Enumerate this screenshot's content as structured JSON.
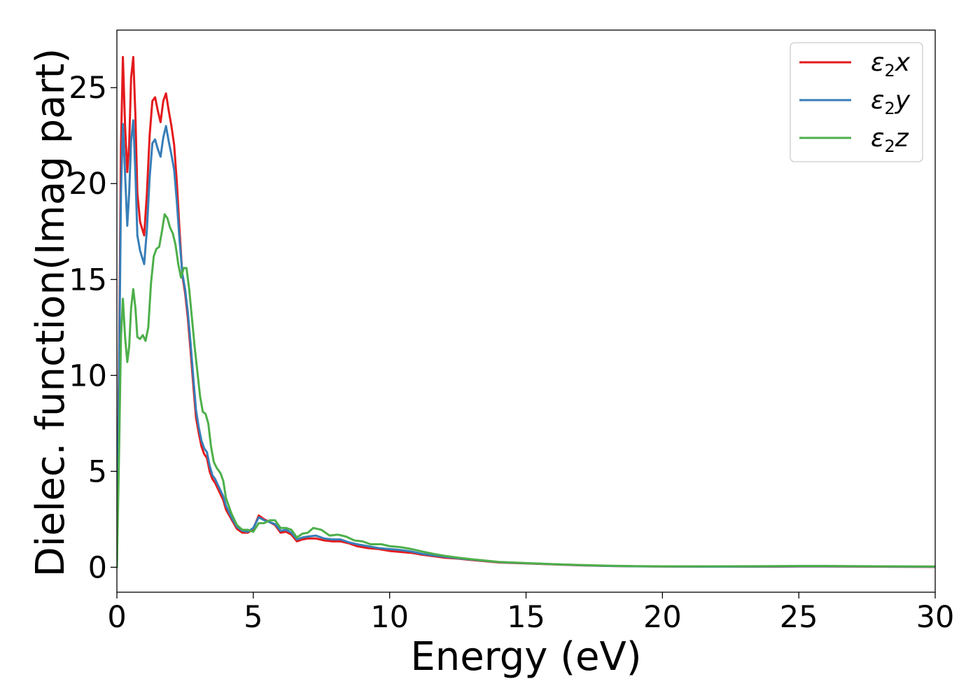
{
  "chart_data": {
    "type": "line",
    "title": "",
    "xlabel": "Energy (eV)",
    "ylabel": "Dielec. function(Imag part)",
    "xlim": [
      0,
      30
    ],
    "ylim": [
      -1.3,
      28
    ],
    "xticks": [
      0,
      5,
      10,
      15,
      20,
      25,
      30
    ],
    "yticks": [
      0,
      5,
      10,
      15,
      20,
      25
    ],
    "grid": false,
    "legend_position": "top-right",
    "series": [
      {
        "name": "ε₂x",
        "legend": {
          "symbol": "ε",
          "sub": "2",
          "axis": "x"
        },
        "color": "#e41a1c",
        "points": [
          [
            0,
            0
          ],
          [
            0.08,
            11
          ],
          [
            0.15,
            22
          ],
          [
            0.22,
            26.6
          ],
          [
            0.3,
            23
          ],
          [
            0.38,
            20.6
          ],
          [
            0.45,
            22
          ],
          [
            0.52,
            25.5
          ],
          [
            0.6,
            26.6
          ],
          [
            0.68,
            23.5
          ],
          [
            0.75,
            19.5
          ],
          [
            0.85,
            18
          ],
          [
            1.0,
            17.3
          ],
          [
            1.1,
            19.5
          ],
          [
            1.2,
            22.5
          ],
          [
            1.3,
            24.3
          ],
          [
            1.4,
            24.5
          ],
          [
            1.5,
            23.8
          ],
          [
            1.6,
            23.2
          ],
          [
            1.7,
            24.3
          ],
          [
            1.8,
            24.7
          ],
          [
            1.9,
            23.8
          ],
          [
            2.0,
            23
          ],
          [
            2.1,
            22
          ],
          [
            2.2,
            20
          ],
          [
            2.3,
            17.5
          ],
          [
            2.4,
            15.2
          ],
          [
            2.5,
            14.3
          ],
          [
            2.6,
            13
          ],
          [
            2.7,
            11.3
          ],
          [
            2.8,
            9.5
          ],
          [
            2.9,
            7.8
          ],
          [
            3.0,
            7
          ],
          [
            3.1,
            6.3
          ],
          [
            3.2,
            5.9
          ],
          [
            3.3,
            5.7
          ],
          [
            3.4,
            5
          ],
          [
            3.5,
            4.6
          ],
          [
            3.6,
            4.4
          ],
          [
            3.7,
            4.1
          ],
          [
            3.8,
            3.8
          ],
          [
            3.9,
            3.5
          ],
          [
            4.0,
            3
          ],
          [
            4.2,
            2.5
          ],
          [
            4.4,
            2
          ],
          [
            4.6,
            1.8
          ],
          [
            4.8,
            1.8
          ],
          [
            5.0,
            2
          ],
          [
            5.2,
            2.7
          ],
          [
            5.4,
            2.5
          ],
          [
            5.6,
            2.35
          ],
          [
            5.8,
            2.2
          ],
          [
            6.0,
            1.8
          ],
          [
            6.2,
            1.85
          ],
          [
            6.4,
            1.7
          ],
          [
            6.6,
            1.35
          ],
          [
            6.8,
            1.45
          ],
          [
            7.0,
            1.5
          ],
          [
            7.3,
            1.5
          ],
          [
            7.6,
            1.4
          ],
          [
            7.9,
            1.35
          ],
          [
            8.2,
            1.35
          ],
          [
            8.5,
            1.25
          ],
          [
            8.8,
            1.1
          ],
          [
            9.2,
            1.0
          ],
          [
            9.6,
            0.95
          ],
          [
            10.0,
            0.85
          ],
          [
            10.4,
            0.8
          ],
          [
            10.8,
            0.75
          ],
          [
            11.2,
            0.65
          ],
          [
            11.6,
            0.58
          ],
          [
            12.0,
            0.5
          ],
          [
            12.5,
            0.45
          ],
          [
            13.0,
            0.38
          ],
          [
            14.0,
            0.25
          ],
          [
            15.0,
            0.2
          ],
          [
            16.0,
            0.15
          ],
          [
            17.0,
            0.1
          ],
          [
            18.0,
            0.07
          ],
          [
            19.0,
            0.05
          ],
          [
            20.0,
            0.04
          ],
          [
            22.0,
            0.03
          ],
          [
            24.0,
            0.03
          ],
          [
            25.0,
            0.04
          ],
          [
            26.0,
            0.04
          ],
          [
            28.0,
            0.03
          ],
          [
            30.0,
            0.02
          ]
        ]
      },
      {
        "name": "ε₂y",
        "legend": {
          "symbol": "ε",
          "sub": "2",
          "axis": "y"
        },
        "color": "#377eb8",
        "points": [
          [
            0,
            0
          ],
          [
            0.08,
            10
          ],
          [
            0.15,
            19.5
          ],
          [
            0.22,
            23.1
          ],
          [
            0.3,
            20.5
          ],
          [
            0.38,
            17.8
          ],
          [
            0.45,
            19.5
          ],
          [
            0.52,
            22.2
          ],
          [
            0.6,
            23.3
          ],
          [
            0.68,
            20.5
          ],
          [
            0.75,
            17.3
          ],
          [
            0.85,
            16.5
          ],
          [
            1.0,
            15.8
          ],
          [
            1.1,
            17.6
          ],
          [
            1.2,
            20.3
          ],
          [
            1.3,
            22.1
          ],
          [
            1.4,
            22.3
          ],
          [
            1.5,
            21.8
          ],
          [
            1.6,
            21.4
          ],
          [
            1.7,
            22.4
          ],
          [
            1.8,
            23
          ],
          [
            1.9,
            22.2
          ],
          [
            2.0,
            21.5
          ],
          [
            2.1,
            20.7
          ],
          [
            2.2,
            19
          ],
          [
            2.3,
            17
          ],
          [
            2.4,
            15.3
          ],
          [
            2.5,
            14.5
          ],
          [
            2.6,
            13.3
          ],
          [
            2.7,
            11.7
          ],
          [
            2.8,
            9.9
          ],
          [
            2.9,
            8.2
          ],
          [
            3.0,
            7.3
          ],
          [
            3.1,
            6.6
          ],
          [
            3.2,
            6.2
          ],
          [
            3.3,
            6.0
          ],
          [
            3.4,
            5.3
          ],
          [
            3.5,
            4.8
          ],
          [
            3.6,
            4.6
          ],
          [
            3.7,
            4.3
          ],
          [
            3.8,
            4.0
          ],
          [
            3.9,
            3.7
          ],
          [
            4.0,
            3.2
          ],
          [
            4.2,
            2.6
          ],
          [
            4.4,
            2.1
          ],
          [
            4.6,
            1.9
          ],
          [
            4.8,
            1.85
          ],
          [
            5.0,
            2.05
          ],
          [
            5.2,
            2.6
          ],
          [
            5.4,
            2.45
          ],
          [
            5.6,
            2.35
          ],
          [
            5.8,
            2.25
          ],
          [
            6.0,
            1.9
          ],
          [
            6.2,
            1.95
          ],
          [
            6.4,
            1.8
          ],
          [
            6.6,
            1.45
          ],
          [
            6.8,
            1.55
          ],
          [
            7.0,
            1.6
          ],
          [
            7.3,
            1.65
          ],
          [
            7.6,
            1.5
          ],
          [
            7.9,
            1.45
          ],
          [
            8.2,
            1.45
          ],
          [
            8.5,
            1.3
          ],
          [
            8.8,
            1.2
          ],
          [
            9.2,
            1.1
          ],
          [
            9.6,
            1.0
          ],
          [
            10.0,
            0.95
          ],
          [
            10.4,
            0.9
          ],
          [
            10.8,
            0.82
          ],
          [
            11.2,
            0.7
          ],
          [
            11.6,
            0.62
          ],
          [
            12.0,
            0.55
          ],
          [
            12.5,
            0.47
          ],
          [
            13.0,
            0.4
          ],
          [
            14.0,
            0.27
          ],
          [
            15.0,
            0.21
          ],
          [
            16.0,
            0.16
          ],
          [
            17.0,
            0.11
          ],
          [
            18.0,
            0.07
          ],
          [
            19.0,
            0.05
          ],
          [
            20.0,
            0.04
          ],
          [
            22.0,
            0.03
          ],
          [
            24.0,
            0.04
          ],
          [
            25.0,
            0.05
          ],
          [
            26.0,
            0.05
          ],
          [
            28.0,
            0.04
          ],
          [
            30.0,
            0.03
          ]
        ]
      },
      {
        "name": "ε₂z",
        "legend": {
          "symbol": "ε",
          "sub": "2",
          "axis": "z"
        },
        "color": "#4daf4a",
        "points": [
          [
            0,
            0
          ],
          [
            0.08,
            6
          ],
          [
            0.15,
            12
          ],
          [
            0.22,
            14
          ],
          [
            0.3,
            12
          ],
          [
            0.38,
            10.7
          ],
          [
            0.45,
            11.5
          ],
          [
            0.52,
            13.5
          ],
          [
            0.6,
            14.5
          ],
          [
            0.68,
            13.5
          ],
          [
            0.75,
            12
          ],
          [
            0.85,
            11.9
          ],
          [
            0.95,
            12.1
          ],
          [
            1.05,
            11.8
          ],
          [
            1.15,
            12.5
          ],
          [
            1.25,
            14.8
          ],
          [
            1.35,
            16.2
          ],
          [
            1.45,
            16.6
          ],
          [
            1.55,
            16.7
          ],
          [
            1.65,
            17.5
          ],
          [
            1.75,
            18.4
          ],
          [
            1.85,
            18.2
          ],
          [
            1.95,
            17.7
          ],
          [
            2.05,
            17.4
          ],
          [
            2.15,
            16.8
          ],
          [
            2.25,
            15.8
          ],
          [
            2.35,
            15.1
          ],
          [
            2.45,
            15.6
          ],
          [
            2.55,
            15.6
          ],
          [
            2.65,
            14.5
          ],
          [
            2.75,
            13
          ],
          [
            2.85,
            11.5
          ],
          [
            2.95,
            10.2
          ],
          [
            3.05,
            8.9
          ],
          [
            3.15,
            8.1
          ],
          [
            3.25,
            8.0
          ],
          [
            3.35,
            7.5
          ],
          [
            3.45,
            6.3
          ],
          [
            3.55,
            5.5
          ],
          [
            3.65,
            5.2
          ],
          [
            3.8,
            4.9
          ],
          [
            3.9,
            4.5
          ],
          [
            4.0,
            3.6
          ],
          [
            4.2,
            2.8
          ],
          [
            4.4,
            2.2
          ],
          [
            4.6,
            1.95
          ],
          [
            4.8,
            1.95
          ],
          [
            5.0,
            1.85
          ],
          [
            5.2,
            2.3
          ],
          [
            5.4,
            2.3
          ],
          [
            5.6,
            2.45
          ],
          [
            5.8,
            2.45
          ],
          [
            6.0,
            2.05
          ],
          [
            6.2,
            2.05
          ],
          [
            6.4,
            1.95
          ],
          [
            6.6,
            1.55
          ],
          [
            6.8,
            1.75
          ],
          [
            7.0,
            1.8
          ],
          [
            7.2,
            2.05
          ],
          [
            7.5,
            1.95
          ],
          [
            7.8,
            1.65
          ],
          [
            8.1,
            1.7
          ],
          [
            8.4,
            1.6
          ],
          [
            8.7,
            1.4
          ],
          [
            9.0,
            1.35
          ],
          [
            9.3,
            1.2
          ],
          [
            9.7,
            1.2
          ],
          [
            10.0,
            1.1
          ],
          [
            10.4,
            1.05
          ],
          [
            10.8,
            0.95
          ],
          [
            11.2,
            0.82
          ],
          [
            11.6,
            0.7
          ],
          [
            12.0,
            0.6
          ],
          [
            12.5,
            0.5
          ],
          [
            13.0,
            0.42
          ],
          [
            14.0,
            0.28
          ],
          [
            15.0,
            0.22
          ],
          [
            16.0,
            0.16
          ],
          [
            17.0,
            0.12
          ],
          [
            18.0,
            0.08
          ],
          [
            19.0,
            0.06
          ],
          [
            20.0,
            0.05
          ],
          [
            22.0,
            0.05
          ],
          [
            24.0,
            0.06
          ],
          [
            25.0,
            0.07
          ],
          [
            26.0,
            0.07
          ],
          [
            28.0,
            0.05
          ],
          [
            30.0,
            0.04
          ]
        ]
      }
    ]
  }
}
